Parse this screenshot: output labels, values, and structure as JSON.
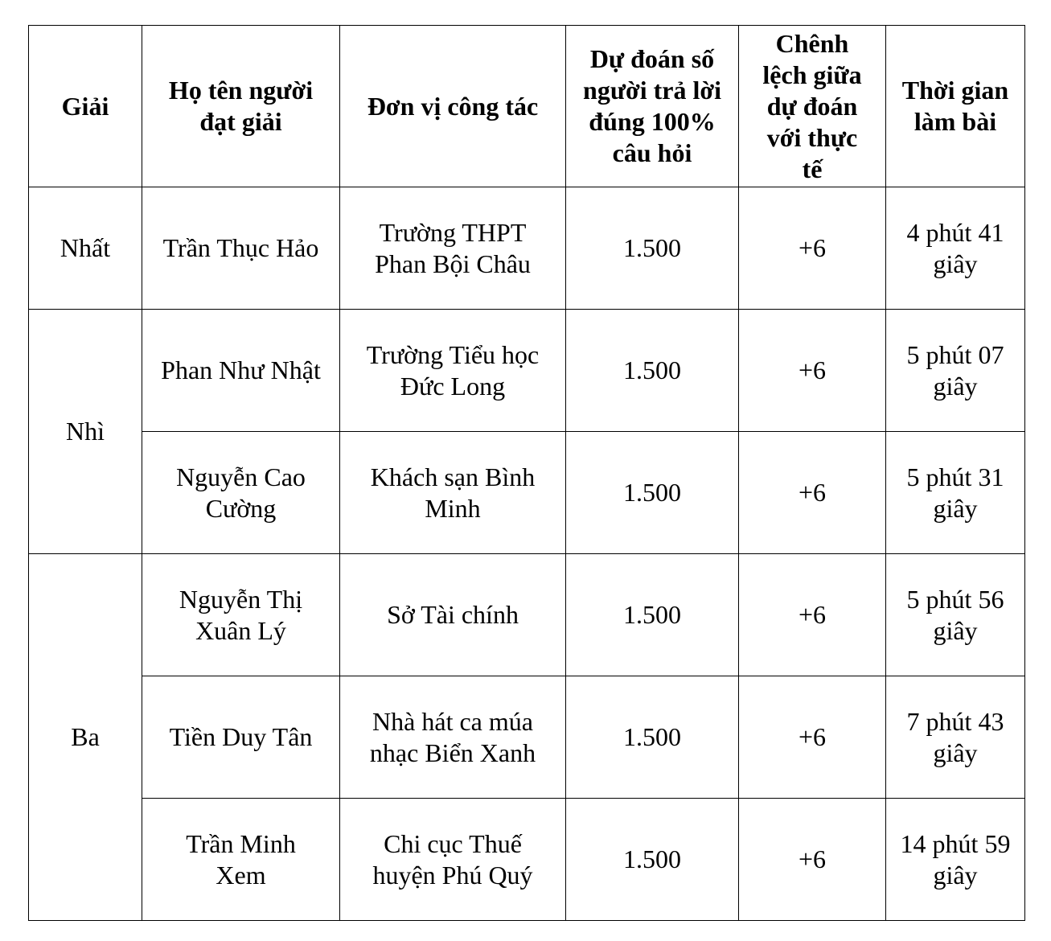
{
  "headers": [
    "Giải",
    "Họ tên người đạt giải",
    "Đơn vị công tác",
    "Dự đoán số người trả lời đúng 100% câu hỏi",
    "Chênh lệch giữa dự đoán với thực tế",
    "Thời gian làm bài"
  ],
  "prizes": [
    "Nhất",
    "Nhì",
    "Ba"
  ],
  "rows": [
    {
      "name": "Trần Thục Hảo",
      "unit": "Trường THPT Phan Bội Châu",
      "prediction": "1.500",
      "diff": "+6",
      "time": "4 phút 41 giây"
    },
    {
      "name": "Phan Như Nhật",
      "unit": "Trường Tiểu học Đức Long",
      "prediction": "1.500",
      "diff": "+6",
      "time": "5 phút 07 giây"
    },
    {
      "name": "Nguyễn Cao Cường",
      "unit": "Khách sạn Bình Minh",
      "prediction": "1.500",
      "diff": "+6",
      "time": "5 phút 31 giây"
    },
    {
      "name": "Nguyễn Thị Xuân Lý",
      "unit": "Sở Tài chính",
      "prediction": "1.500",
      "diff": "+6",
      "time": "5 phút 56 giây"
    },
    {
      "name": "Tiền Duy Tân",
      "unit": "Nhà hát ca múa nhạc Biển Xanh",
      "prediction": "1.500",
      "diff": "+6",
      "time": "7 phút 43 giây"
    },
    {
      "name": "Trần Minh Xem",
      "unit": "Chi cục Thuế huyện Phú Quý",
      "prediction": "1.500",
      "diff": "+6",
      "time": "14 phút 59 giây"
    }
  ]
}
